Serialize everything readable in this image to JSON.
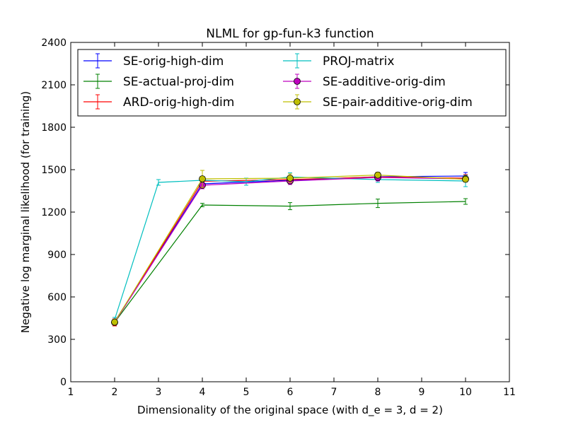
{
  "chart_data": {
    "type": "line",
    "title": "NLML for gp-fun-k3 function",
    "xlabel": "Dimensionality of the original space (with d_e = 3, d = 2)",
    "ylabel": "Negative log marginal likelihood (for training)",
    "xlim": [
      1,
      11
    ],
    "ylim": [
      0,
      2400
    ],
    "xticks": [
      1,
      2,
      3,
      4,
      5,
      6,
      7,
      8,
      9,
      10,
      11
    ],
    "yticks": [
      0,
      300,
      600,
      900,
      1200,
      1500,
      1800,
      2100,
      2400
    ],
    "grid": false,
    "legend_position": "top",
    "series": [
      {
        "name": "SE-orig-high-dim",
        "color": "#0000ff",
        "marker": "none",
        "x": [
          2,
          4,
          6,
          8,
          10
        ],
        "y": [
          425,
          1400,
          1425,
          1450,
          1455
        ],
        "err": [
          20,
          18,
          20,
          25,
          25
        ]
      },
      {
        "name": "SE-actual-proj-dim",
        "color": "#008000",
        "marker": "none",
        "x": [
          2,
          4,
          6,
          8,
          10
        ],
        "y": [
          420,
          1250,
          1242,
          1262,
          1275
        ],
        "err": [
          15,
          12,
          25,
          30,
          20
        ]
      },
      {
        "name": "ARD-orig-high-dim",
        "color": "#ff0000",
        "marker": "none",
        "x": [
          2,
          4,
          6,
          8,
          10
        ],
        "y": [
          420,
          1418,
          1430,
          1448,
          1440
        ],
        "err": [
          25,
          20,
          20,
          20,
          25
        ]
      },
      {
        "name": "PROJ-matrix",
        "color": "#00bfbf",
        "marker": "none",
        "x": [
          2,
          3,
          4,
          5,
          6,
          8,
          10
        ],
        "y": [
          440,
          1410,
          1425,
          1415,
          1448,
          1430,
          1420
        ],
        "err": [
          15,
          20,
          20,
          25,
          30,
          20,
          40
        ]
      },
      {
        "name": "SE-additive-orig-dim",
        "color": "#bf00bf",
        "marker": "circle",
        "x": [
          2,
          4,
          6,
          8,
          10
        ],
        "y": [
          420,
          1390,
          1420,
          1445,
          1435
        ],
        "err": [
          20,
          25,
          25,
          25,
          20
        ]
      },
      {
        "name": "SE-pair-additive-orig-dim",
        "color": "#bfbf00",
        "marker": "circle",
        "x": [
          2,
          4,
          6,
          8,
          10
        ],
        "y": [
          422,
          1435,
          1440,
          1462,
          1432
        ],
        "err": [
          20,
          60,
          30,
          20,
          20
        ]
      }
    ]
  }
}
